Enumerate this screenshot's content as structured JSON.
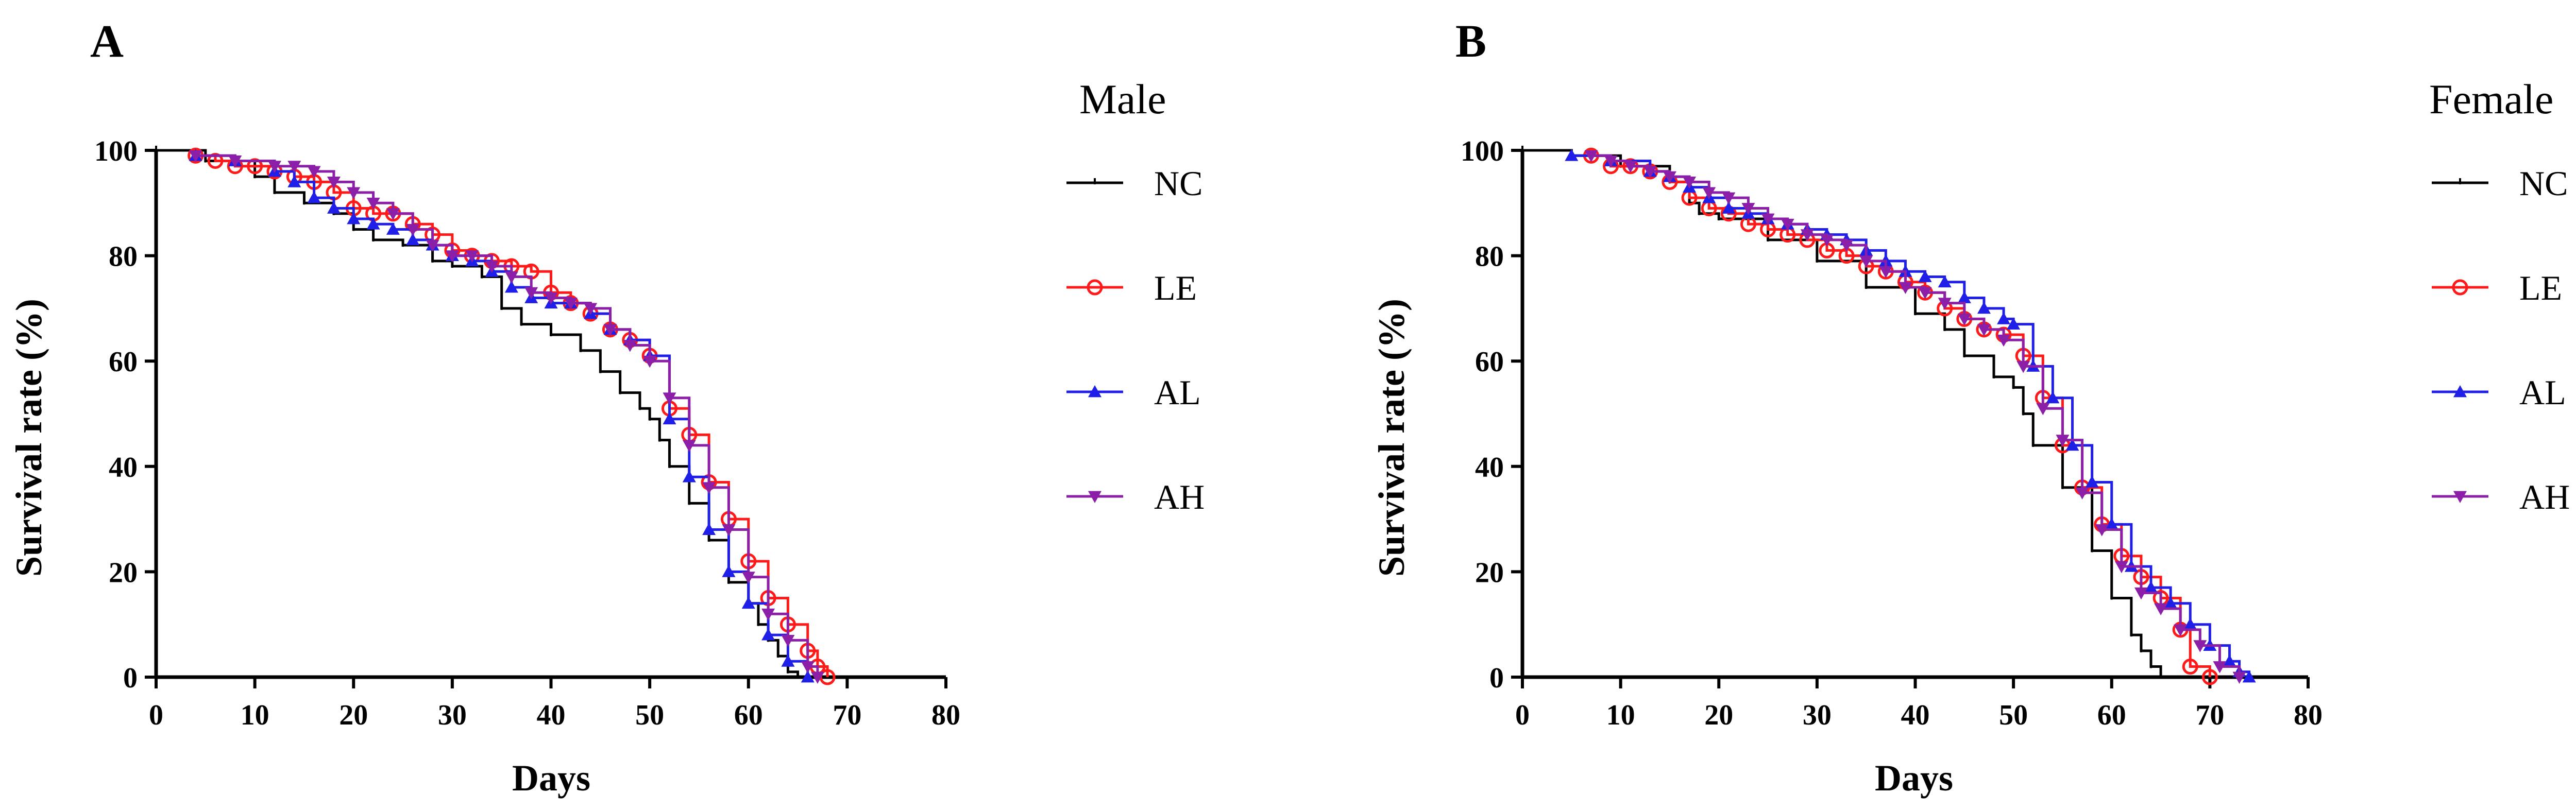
{
  "colors": {
    "NC": "#000000",
    "LE": "#ff1a1a",
    "AL": "#1f1fe8",
    "AH": "#8b1fa8"
  },
  "chart_data": [
    {
      "type": "line",
      "panel": "A",
      "legend_title": "Male",
      "xlabel": "Days",
      "ylabel": "Survival rate (%)",
      "xlim": [
        0,
        80
      ],
      "ylim": [
        0,
        100
      ],
      "xticks": [
        0,
        10,
        20,
        30,
        40,
        50,
        60,
        70,
        80
      ],
      "yticks": [
        0,
        20,
        40,
        60,
        80,
        100
      ],
      "series": [
        {
          "name": "NC",
          "marker": "tick",
          "x": [
            0,
            5,
            10,
            12,
            15,
            18,
            20,
            22,
            25,
            28,
            30,
            33,
            35,
            37,
            40,
            43,
            45,
            47,
            49,
            50,
            51,
            52,
            54,
            56,
            58,
            60,
            61,
            62,
            63,
            64,
            65
          ],
          "y": [
            100,
            98,
            95,
            92,
            90,
            88,
            85,
            83,
            82,
            79,
            78,
            76,
            70,
            67,
            65,
            62,
            58,
            54,
            51,
            49,
            45,
            40,
            33,
            26,
            18,
            14,
            10,
            7,
            4,
            1,
            0
          ]
        },
        {
          "name": "LE",
          "marker": "circle",
          "x": [
            4,
            6,
            8,
            10,
            12,
            14,
            16,
            18,
            20,
            22,
            24,
            26,
            28,
            30,
            32,
            34,
            36,
            38,
            40,
            42,
            44,
            46,
            48,
            50,
            52,
            54,
            56,
            58,
            60,
            62,
            64,
            66,
            67,
            68
          ],
          "y": [
            99,
            98,
            97,
            97,
            96,
            95,
            94,
            92,
            89,
            88,
            88,
            86,
            84,
            81,
            80,
            79,
            78,
            77,
            73,
            71,
            69,
            66,
            64,
            61,
            51,
            46,
            37,
            30,
            22,
            15,
            10,
            5,
            2,
            0
          ]
        },
        {
          "name": "AL",
          "marker": "triangle-up",
          "x": [
            4,
            8,
            12,
            14,
            16,
            18,
            20,
            22,
            24,
            26,
            28,
            30,
            32,
            34,
            36,
            38,
            40,
            42,
            44,
            46,
            48,
            50,
            52,
            54,
            56,
            58,
            60,
            62,
            64,
            66
          ],
          "y": [
            99,
            98,
            96,
            94,
            91,
            89,
            87,
            86,
            85,
            83,
            82,
            80,
            79,
            77,
            74,
            72,
            71,
            71,
            69,
            66,
            64,
            61,
            49,
            38,
            28,
            20,
            14,
            8,
            3,
            0
          ]
        },
        {
          "name": "AH",
          "marker": "triangle-down",
          "x": [
            4,
            8,
            12,
            14,
            16,
            18,
            20,
            22,
            24,
            26,
            28,
            30,
            32,
            34,
            36,
            38,
            40,
            42,
            44,
            46,
            48,
            50,
            52,
            54,
            56,
            58,
            60,
            62,
            64,
            66,
            67
          ],
          "y": [
            99,
            98,
            97,
            97,
            96,
            94,
            92,
            90,
            88,
            85,
            82,
            80,
            80,
            78,
            76,
            73,
            72,
            71,
            70,
            66,
            63,
            60,
            53,
            44,
            36,
            28,
            19,
            12,
            7,
            2,
            0
          ]
        }
      ]
    },
    {
      "type": "line",
      "panel": "B",
      "legend_title": "Female",
      "xlabel": "Days",
      "ylabel": "Survival rate (%)",
      "xlim": [
        0,
        80
      ],
      "ylim": [
        0,
        100
      ],
      "xticks": [
        0,
        10,
        20,
        30,
        40,
        50,
        60,
        70,
        80
      ],
      "yticks": [
        0,
        20,
        40,
        60,
        80,
        100
      ],
      "series": [
        {
          "name": "NC",
          "marker": "tick",
          "x": [
            0,
            5,
            10,
            15,
            17,
            18,
            20,
            25,
            30,
            35,
            40,
            43,
            45,
            48,
            50,
            51,
            52,
            55,
            58,
            60,
            62,
            63,
            64,
            65
          ],
          "y": [
            100,
            99,
            97,
            94,
            90,
            88,
            87,
            83,
            79,
            74,
            69,
            66,
            61,
            57,
            55,
            50,
            44,
            36,
            24,
            15,
            8,
            5,
            2,
            0
          ]
        },
        {
          "name": "LE",
          "marker": "circle",
          "x": [
            7,
            9,
            11,
            13,
            15,
            17,
            19,
            21,
            23,
            25,
            27,
            29,
            31,
            33,
            35,
            37,
            39,
            41,
            43,
            45,
            47,
            49,
            51,
            53,
            55,
            57,
            59,
            61,
            63,
            65,
            67,
            68,
            70
          ],
          "y": [
            99,
            97,
            97,
            96,
            94,
            91,
            89,
            88,
            86,
            85,
            84,
            83,
            81,
            80,
            78,
            77,
            75,
            73,
            70,
            68,
            66,
            65,
            61,
            53,
            44,
            36,
            29,
            23,
            19,
            15,
            9,
            2,
            0
          ]
        },
        {
          "name": "AL",
          "marker": "triangle-up",
          "x": [
            5,
            9,
            13,
            15,
            17,
            19,
            21,
            23,
            25,
            27,
            29,
            31,
            33,
            35,
            37,
            39,
            41,
            43,
            45,
            47,
            49,
            50,
            52,
            54,
            56,
            58,
            60,
            62,
            64,
            66,
            68,
            70,
            72,
            73,
            74
          ],
          "y": [
            99,
            98,
            96,
            95,
            93,
            91,
            89,
            88,
            87,
            86,
            85,
            84,
            83,
            81,
            79,
            77,
            76,
            75,
            72,
            70,
            68,
            67,
            59,
            53,
            44,
            37,
            29,
            21,
            17,
            14,
            10,
            6,
            3,
            1,
            0
          ]
        },
        {
          "name": "AH",
          "marker": "triangle-down",
          "x": [
            7,
            9,
            11,
            13,
            15,
            17,
            19,
            21,
            23,
            25,
            27,
            29,
            31,
            33,
            35,
            37,
            39,
            41,
            43,
            45,
            47,
            49,
            51,
            53,
            55,
            57,
            59,
            61,
            63,
            65,
            67,
            69,
            71,
            73
          ],
          "y": [
            99,
            98,
            97,
            96,
            95,
            94,
            92,
            91,
            89,
            87,
            86,
            84,
            83,
            82,
            79,
            77,
            74,
            73,
            71,
            68,
            66,
            64,
            59,
            51,
            45,
            35,
            28,
            21,
            16,
            13,
            9,
            6,
            2,
            0
          ]
        }
      ]
    }
  ]
}
